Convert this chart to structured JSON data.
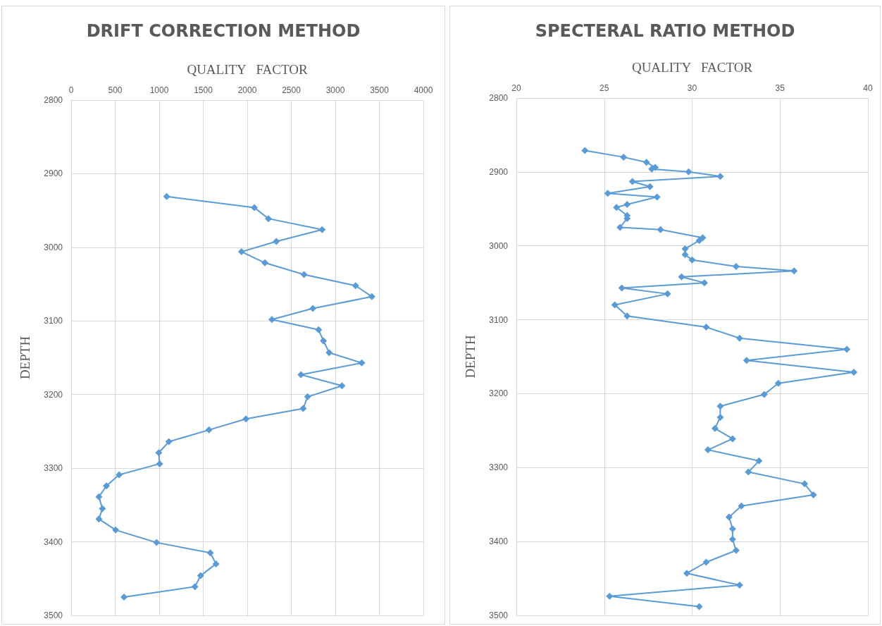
{
  "chart_data": [
    {
      "type": "line",
      "title": "DRIFT CORRECTION METHOD",
      "xlabel": "QUALITY   FACTOR",
      "ylabel": "DEPTH",
      "xlim": [
        0,
        4000
      ],
      "xticks": [
        0,
        500,
        1000,
        1500,
        2000,
        2500,
        3000,
        3500,
        4000
      ],
      "ylim": [
        3500,
        2800
      ],
      "yticks": [
        2800,
        2900,
        3000,
        3100,
        3200,
        3300,
        3400,
        3500
      ],
      "grid": true,
      "marker": "diamond",
      "line_style": "solid",
      "series": [
        {
          "color": "#5b9bd5",
          "x": [
            1085,
            2080,
            2240,
            2850,
            2330,
            1935,
            2200,
            2645,
            3230,
            3415,
            2745,
            2280,
            2810,
            2865,
            2930,
            3300,
            2610,
            3075,
            2685,
            2635,
            1985,
            1565,
            1110,
            995,
            1005,
            545,
            400,
            315,
            355,
            315,
            505,
            970,
            1580,
            1645,
            1470,
            1405,
            600
          ],
          "values": [
            2931,
            2946,
            2961,
            2976,
            2992,
            3006,
            3021,
            3037,
            3052,
            3067,
            3083,
            3098,
            3112,
            3127,
            3143,
            3157,
            3173,
            3188,
            3203,
            3219,
            3233,
            3248,
            3264,
            3279,
            3294,
            3309,
            3324,
            3339,
            3355,
            3369,
            3384,
            3401,
            3415,
            3430,
            3446,
            3461,
            3475
          ]
        }
      ]
    },
    {
      "type": "line",
      "title": "SPECTERAL RATIO METHOD",
      "xlabel": "QUALITY   FACTOR",
      "ylabel": "DEPTH",
      "xlim": [
        20,
        40
      ],
      "xticks": [
        20,
        25,
        30,
        35,
        40
      ],
      "ylim": [
        3500,
        2800
      ],
      "yticks": [
        2800,
        2900,
        3000,
        3100,
        3200,
        3300,
        3400,
        3500
      ],
      "grid": true,
      "marker": "diamond",
      "line_style": "solid",
      "series": [
        {
          "color": "#5b9bd5",
          "x": [
            23.9,
            26.1,
            27.4,
            27.9,
            27.7,
            29.8,
            31.6,
            26.6,
            27.6,
            25.2,
            28.0,
            26.3,
            25.7,
            26.3,
            26.3,
            25.9,
            28.2,
            30.6,
            30.4,
            29.6,
            29.6,
            30.0,
            32.5,
            35.8,
            29.4,
            30.7,
            26.0,
            28.6,
            25.6,
            26.3,
            30.8,
            32.7,
            38.8,
            33.1,
            39.2,
            34.9,
            34.1,
            31.6,
            31.6,
            31.3,
            32.3,
            30.9,
            33.8,
            33.2,
            36.4,
            36.9,
            32.8,
            32.1,
            32.3,
            32.3,
            32.5,
            30.8,
            29.7,
            32.7,
            25.3,
            30.4
          ],
          "values": [
            2871,
            2880,
            2887,
            2894,
            2896,
            2900,
            2906,
            2913,
            2920,
            2929,
            2934,
            2944,
            2948,
            2959,
            2963,
            2975,
            2978,
            2989,
            2993,
            3004,
            3012,
            3019,
            3028,
            3034,
            3042,
            3050,
            3057,
            3065,
            3080,
            3095,
            3110,
            3125,
            3140,
            3155,
            3171,
            3186,
            3201,
            3217,
            3232,
            3247,
            3261,
            3276,
            3291,
            3306,
            3322,
            3337,
            3352,
            3367,
            3383,
            3397,
            3412,
            3428,
            3443,
            3459,
            3474,
            3488
          ]
        }
      ]
    }
  ]
}
